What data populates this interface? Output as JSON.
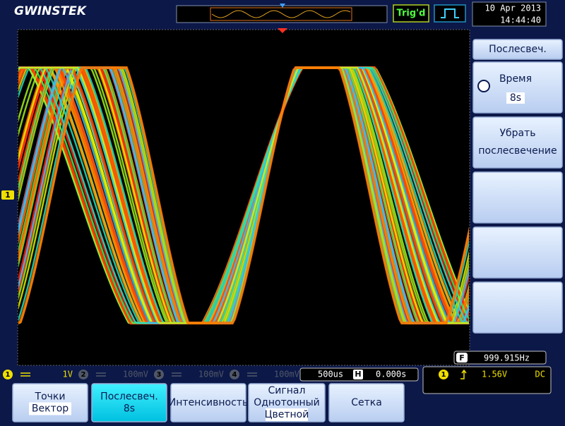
{
  "header": {
    "logo": "GWINSTEK",
    "status": "Trig'd",
    "date": "10 Apr 2013",
    "time": "14:44:40"
  },
  "channel_marker": "1",
  "side_menu": {
    "title": "Послесвеч.",
    "buttons": [
      {
        "lines": [
          "Время"
        ],
        "value": "8s"
      },
      {
        "lines": [
          "Убрать",
          "послесвечение"
        ]
      }
    ]
  },
  "frequency": {
    "icon": "F",
    "value": "999.915Hz"
  },
  "channels": [
    {
      "id": "1",
      "scale": "1V"
    },
    {
      "id": "2",
      "scale": "100mV"
    },
    {
      "id": "3",
      "scale": "100mV"
    },
    {
      "id": "4",
      "scale": "100mV"
    }
  ],
  "timebase": {
    "scale": "500us",
    "icon": "H",
    "position": "0.000s"
  },
  "trigger": {
    "channel": "1",
    "level": "1.56V",
    "coupling": "DC"
  },
  "soft_keys": [
    {
      "lines": [
        "Точки"
      ],
      "value": "Вектор"
    },
    {
      "lines": [
        "Послесвеч."
      ],
      "value": "8s"
    },
    {
      "lines": [
        "Интенсивность"
      ]
    },
    {
      "lines": [
        "Сигнал",
        "Однотонный"
      ],
      "value": "Цветной"
    },
    {
      "lines": [
        "Сетка"
      ]
    }
  ]
}
